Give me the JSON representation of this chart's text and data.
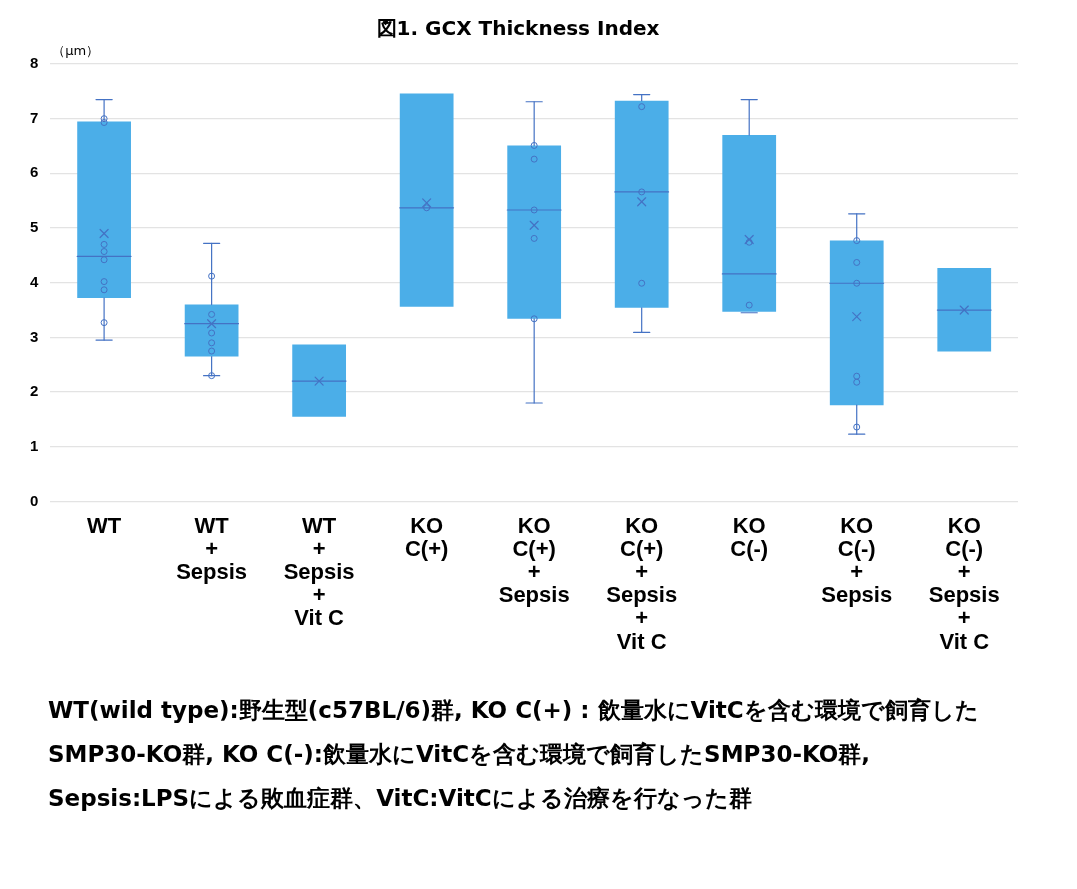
{
  "chart_data": {
    "type": "box",
    "title": "図1. GCX Thickness Index",
    "ylabel": "（μm）",
    "categories": [
      "WT",
      "WT\n+\nSepsis",
      "WT\n+\nSepsis\n+\nVit C",
      "KO\nC(+)",
      "KO\nC(+)\n+\nSepsis",
      "KO\nC(+)\n+\nSepsis\n+\nVit C",
      "KO\nC(-)",
      "KO\nC(-)\n+\nSepsis",
      "KO\nC(-)\n+\nSepsis\n+\nVit C"
    ],
    "series": [
      {
        "type": "box",
        "color": "#4baee8",
        "boxes": [
          {
            "low": 2.95,
            "q1": 3.72,
            "median": 4.48,
            "q3": 6.95,
            "high": 7.35,
            "mean": 4.9
          },
          {
            "low": 2.3,
            "q1": 2.65,
            "median": 3.25,
            "q3": 3.6,
            "high": 4.72,
            "mean": 3.25
          },
          {
            "low": 1.55,
            "q1": 1.55,
            "median": 2.2,
            "q3": 2.87,
            "high": 2.87,
            "mean": 2.2
          },
          {
            "low": 3.56,
            "q1": 3.56,
            "median": 5.37,
            "q3": 7.46,
            "high": 7.46,
            "mean": 5.46
          },
          {
            "low": 1.8,
            "q1": 3.34,
            "median": 5.33,
            "q3": 6.51,
            "high": 7.31,
            "mean": 5.05
          },
          {
            "low": 3.09,
            "q1": 3.54,
            "median": 5.66,
            "q3": 7.33,
            "high": 7.44,
            "mean": 5.48
          },
          {
            "low": 3.45,
            "q1": 3.47,
            "median": 4.16,
            "q3": 6.7,
            "high": 7.35,
            "mean": 4.79
          },
          {
            "low": 1.23,
            "q1": 1.76,
            "median": 3.99,
            "q3": 4.77,
            "high": 5.26,
            "mean": 3.38
          },
          {
            "low": 2.74,
            "q1": 2.74,
            "median": 3.5,
            "q3": 4.27,
            "high": 4.27,
            "mean": 3.5
          }
        ]
      },
      {
        "type": "scatter",
        "color": "#4472c4",
        "marker": "circle",
        "x": [
          "WT",
          "WT",
          "WT",
          "WT",
          "WT",
          "WT",
          "WT",
          "WT",
          "WT\n+\nSepsis",
          "WT\n+\nSepsis",
          "WT\n+\nSepsis",
          "WT\n+\nSepsis",
          "WT\n+\nSepsis",
          "WT\n+\nSepsis",
          "KO\nC(+)",
          "KO\nC(+)\n+\nSepsis",
          "KO\nC(+)\n+\nSepsis",
          "KO\nC(+)\n+\nSepsis",
          "KO\nC(+)\n+\nSepsis",
          "KO\nC(+)\n+\nSepsis",
          "KO\nC(+)\n+\nSepsis\n+\nVit C",
          "KO\nC(+)\n+\nSepsis\n+\nVit C",
          "KO\nC(+)\n+\nSepsis\n+\nVit C",
          "KO\nC(-)",
          "KO\nC(-)",
          "KO\nC(-)\n+\nSepsis",
          "KO\nC(-)\n+\nSepsis",
          "KO\nC(-)\n+\nSepsis",
          "KO\nC(-)\n+\nSepsis",
          "KO\nC(-)\n+\nSepsis",
          "KO\nC(-)\n+\nSepsis"
        ],
        "values": [
          7.0,
          6.93,
          4.7,
          4.57,
          4.42,
          4.02,
          3.87,
          3.27,
          4.12,
          3.42,
          3.08,
          2.9,
          2.75,
          2.3,
          5.37,
          6.51,
          6.26,
          5.33,
          4.81,
          3.34,
          7.22,
          5.66,
          3.99,
          4.74,
          3.59,
          4.77,
          4.37,
          3.99,
          2.29,
          2.18,
          1.36
        ]
      }
    ],
    "ylim": [
      0,
      8
    ],
    "yticks": [
      0,
      1,
      2,
      3,
      4,
      5,
      6,
      7,
      8
    ],
    "grid": "y",
    "legend": false,
    "annotations": [
      "WT(wild type):野生型(c57BL/6)群, KO C(+) : 飲量水にVitCを含む環境で飼育したSMP30-KO群, KO C(-):飲量水にVitCを含む環境で飼育したSMP30-KO群, Sepsis:LPSによる敗血症群、VitC:VitCによる治療を行なった群"
    ]
  }
}
